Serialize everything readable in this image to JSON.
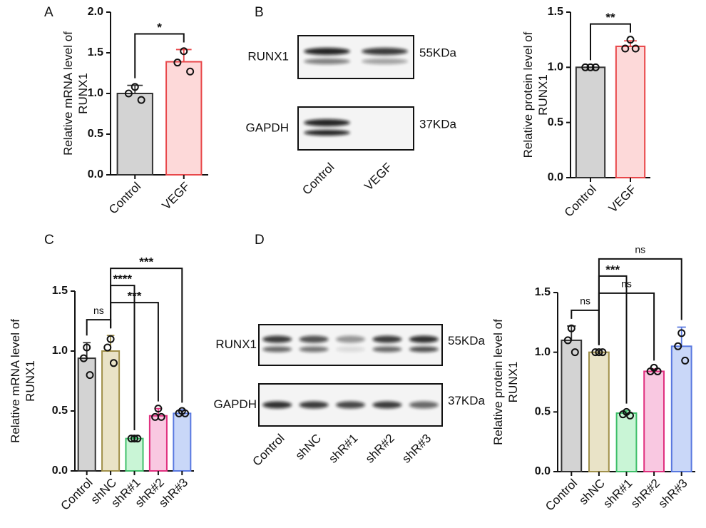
{
  "panels": [
    "A",
    "B",
    "C",
    "D"
  ],
  "blots": [
    {
      "lanes": [
        "Control",
        "VEGF"
      ],
      "rows": [
        {
          "label": "RUNX1",
          "size": "55KDa"
        },
        {
          "label": "GAPDH",
          "size": "37KDa"
        }
      ]
    },
    {
      "lanes": [
        "Control",
        "shNC",
        "shR#1",
        "shR#2",
        "shR#3"
      ],
      "rows": [
        {
          "label": "RUNX1",
          "size": "55KDa"
        },
        {
          "label": "GAPDH",
          "size": "37KDa"
        }
      ]
    }
  ],
  "chart_data": [
    {
      "type": "bar",
      "ylabel": [
        "Relative mRNA level of",
        "RUNX1"
      ],
      "categories": [
        "Control",
        "VEGF"
      ],
      "values": [
        1.0,
        1.39
      ],
      "errors": [
        0.1,
        0.15
      ],
      "points": [
        [
          1.08,
          1.0,
          0.92
        ],
        [
          1.52,
          1.38,
          1.27
        ]
      ],
      "colors": [
        "#d3d3d3",
        "#fdd9d9"
      ],
      "edge_colors": [
        "#333333",
        "#e8474a"
      ],
      "ylim": [
        0,
        2
      ],
      "yticks": [
        {
          "value": 0,
          "label": "0.0"
        },
        0.5,
        {
          "value": 1,
          "label": "1.0"
        },
        1.5,
        {
          "value": 2,
          "label": "2.0"
        }
      ],
      "comparisons": [
        {
          "pair": [
            0,
            1
          ],
          "label": "*"
        }
      ]
    },
    {
      "type": "bar",
      "ylabel": [
        "Relative protein level of",
        "RUNX1"
      ],
      "categories": [
        "Control",
        "VEGF"
      ],
      "values": [
        1.0,
        1.19
      ],
      "errors": [
        0.0,
        0.05
      ],
      "points": [
        [
          1.0,
          1.0,
          1.0
        ],
        [
          1.25,
          1.17,
          1.17
        ]
      ],
      "colors": [
        "#d3d3d3",
        "#fdd9d9"
      ],
      "edge_colors": [
        "#333333",
        "#e8474a"
      ],
      "ylim": [
        0,
        1.5
      ],
      "yticks": [
        {
          "value": 0,
          "label": "0.0"
        },
        0.5,
        {
          "value": 1,
          "label": "1.0"
        },
        1.5
      ],
      "comparisons": [
        {
          "pair": [
            0,
            1
          ],
          "label": "**"
        }
      ]
    },
    {
      "type": "bar",
      "ylabel": [
        "Relative mRNA level of",
        "RUNX1"
      ],
      "categories": [
        "Control",
        "shNC",
        "shR#1",
        "shR#2",
        "shR#3"
      ],
      "values": [
        0.94,
        1.0,
        0.27,
        0.46,
        0.48
      ],
      "errors": [
        0.13,
        0.13,
        0.01,
        0.06,
        0.03
      ],
      "points": [
        [
          1.03,
          0.94,
          0.8
        ],
        [
          1.1,
          1.03,
          0.9
        ],
        [
          0.27,
          0.27,
          0.27
        ],
        [
          0.52,
          0.45,
          0.45
        ],
        [
          0.5,
          0.48,
          0.48
        ]
      ],
      "colors": [
        "#d3d3d3",
        "#e9e3c7",
        "#c9f5d6",
        "#f9c8e1",
        "#c9d7f8"
      ],
      "edge_colors": [
        "#333333",
        "#a0904a",
        "#3fbf6a",
        "#e0307f",
        "#5878e0"
      ],
      "ylim": [
        0,
        1.5
      ],
      "yticks": [
        {
          "value": 0,
          "label": "0.0"
        },
        0.5,
        {
          "value": 1,
          "label": "1.0"
        },
        1.5
      ],
      "comparisons": [
        {
          "pair": [
            0,
            1
          ],
          "label": "ns"
        },
        {
          "pair": [
            1,
            3
          ],
          "label": "***"
        },
        {
          "pair": [
            1,
            2
          ],
          "label": "****"
        },
        {
          "pair": [
            1,
            4
          ],
          "label": "***"
        }
      ]
    },
    {
      "type": "bar",
      "ylabel": [
        "Relative protein level of",
        "RUNX1"
      ],
      "categories": [
        "Control",
        "shNC",
        "shR#1",
        "shR#2",
        "shR#3"
      ],
      "values": [
        1.1,
        1.0,
        0.49,
        0.84,
        1.05
      ],
      "errors": [
        0.12,
        0.0,
        0.02,
        0.02,
        0.16
      ],
      "points": [
        [
          1.2,
          1.1,
          1.0
        ],
        [
          1.0,
          1.0,
          1.0
        ],
        [
          0.5,
          0.48,
          0.47
        ],
        [
          0.87,
          0.84,
          0.84
        ],
        [
          1.16,
          1.05,
          0.93
        ]
      ],
      "colors": [
        "#d3d3d3",
        "#e9e3c7",
        "#c9f5d6",
        "#f9c8e1",
        "#c9d7f8"
      ],
      "edge_colors": [
        "#333333",
        "#a0904a",
        "#3fbf6a",
        "#e0307f",
        "#5878e0"
      ],
      "ylim": [
        0,
        1.5
      ],
      "yticks": [
        {
          "value": 0,
          "label": "0.0"
        },
        0.5,
        {
          "value": 1,
          "label": "1.0"
        },
        1.5
      ],
      "comparisons": [
        {
          "pair": [
            0,
            1
          ],
          "label": "ns"
        },
        {
          "pair": [
            1,
            3
          ],
          "label": "ns"
        },
        {
          "pair": [
            1,
            2
          ],
          "label": "***"
        },
        {
          "pair": [
            1,
            4
          ],
          "label": "ns"
        }
      ]
    }
  ]
}
